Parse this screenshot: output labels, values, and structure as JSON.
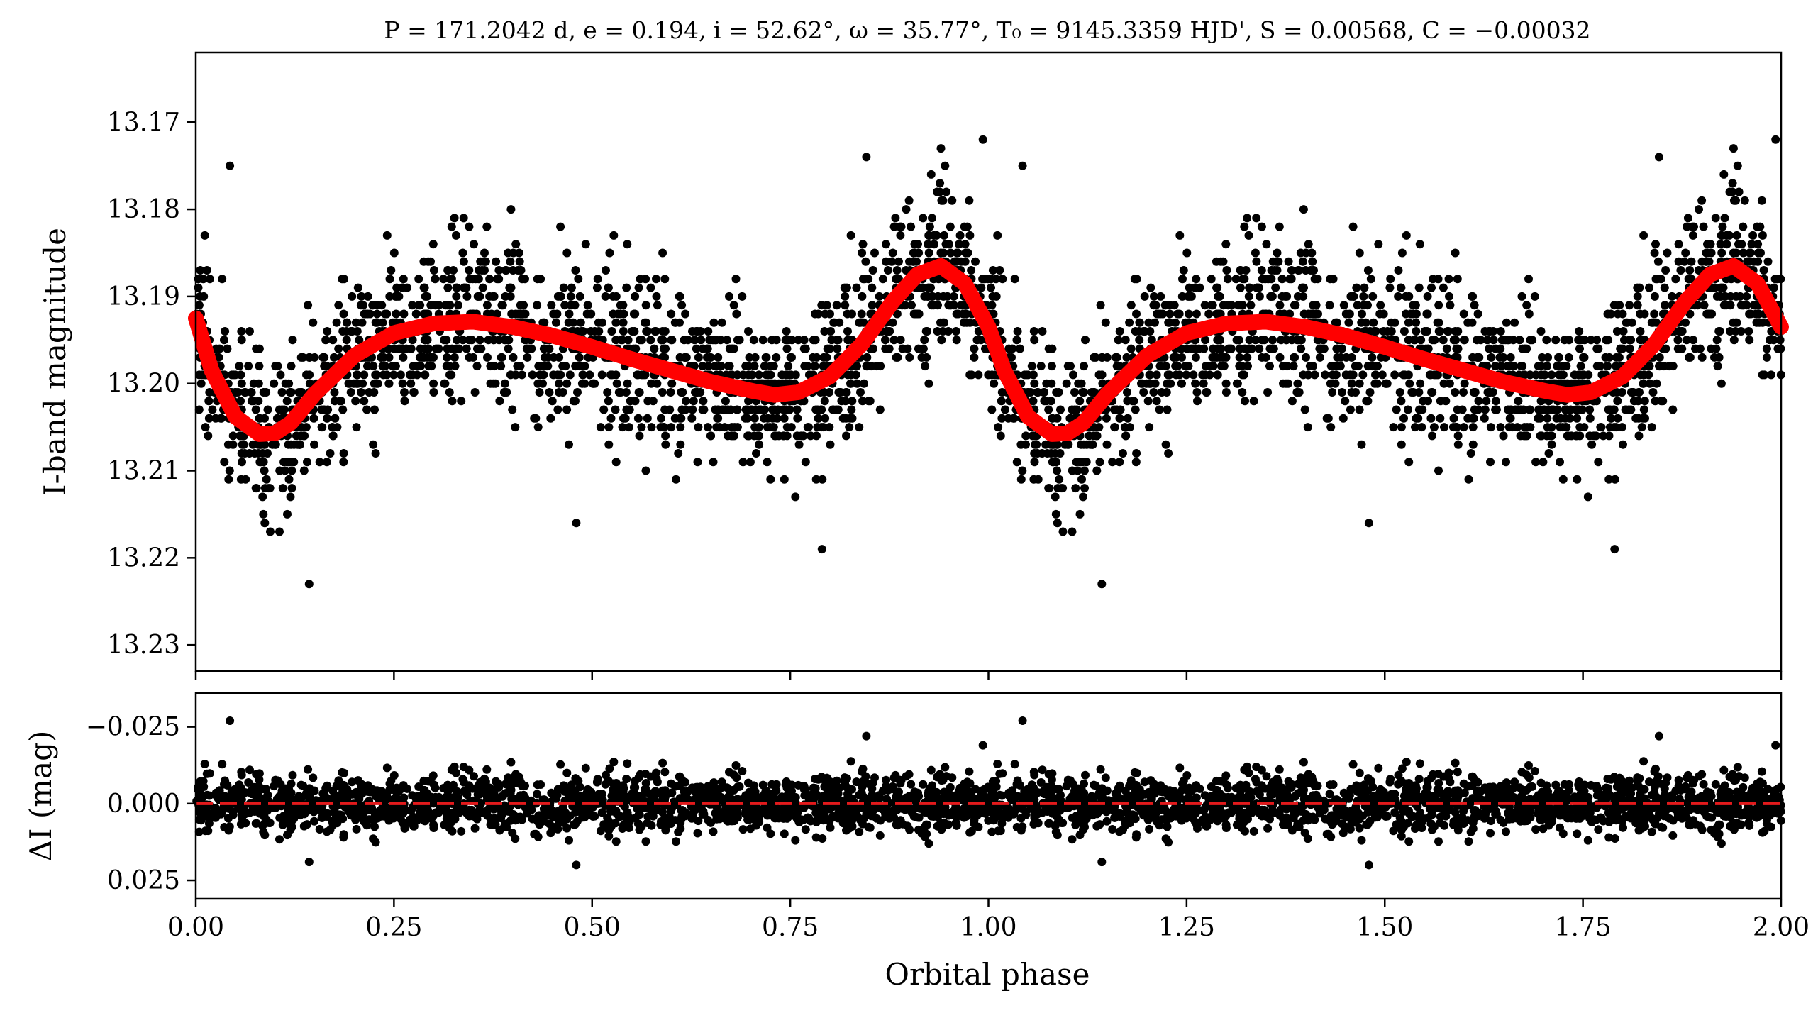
{
  "chart_data": [
    {
      "type": "scatter",
      "panel": "top",
      "title": "P = 171.2042 d, e = 0.194, i = 52.62°, ω = 35.77°, T₀ = 9145.3359 HJD', S = 0.00568, C = −0.00032",
      "ylabel": "I-band magnitude",
      "xlabel": "",
      "xlim": [
        0.0,
        2.0
      ],
      "ylim": [
        13.233,
        13.162
      ],
      "y_inverted": true,
      "y_ticks": [
        13.17,
        13.18,
        13.19,
        13.2,
        13.21,
        13.22,
        13.23
      ],
      "y_tick_labels": [
        "13.17",
        "13.18",
        "13.19",
        "13.20",
        "13.21",
        "13.22",
        "13.23"
      ],
      "grid": false,
      "colors": {
        "points": "#000000",
        "model": "#ff0000"
      },
      "series": [
        {
          "kind": "model-curve",
          "x": [
            0.0,
            0.02,
            0.05,
            0.08,
            0.1,
            0.12,
            0.15,
            0.2,
            0.25,
            0.3,
            0.35,
            0.4,
            0.45,
            0.5,
            0.55,
            0.6,
            0.65,
            0.7,
            0.73,
            0.76,
            0.8,
            0.84,
            0.88,
            0.91,
            0.94,
            0.97,
            1.0,
            1.02,
            1.05,
            1.08,
            1.1,
            1.12,
            1.15,
            1.2,
            1.25,
            1.3,
            1.35,
            1.4,
            1.45,
            1.5,
            1.55,
            1.6,
            1.65,
            1.7,
            1.73,
            1.76,
            1.8,
            1.84,
            1.88,
            1.91,
            1.94,
            1.97,
            2.0
          ],
          "y": [
            13.1925,
            13.1985,
            13.2038,
            13.2058,
            13.2057,
            13.2045,
            13.2012,
            13.1968,
            13.1942,
            13.1931,
            13.1929,
            13.1935,
            13.1945,
            13.1958,
            13.1972,
            13.1985,
            13.1998,
            13.2008,
            13.2013,
            13.201,
            13.1992,
            13.1955,
            13.1905,
            13.1875,
            13.1865,
            13.1885,
            13.1935,
            13.1985,
            13.2038,
            13.2058,
            13.2057,
            13.2045,
            13.2012,
            13.1968,
            13.1942,
            13.1931,
            13.1929,
            13.1935,
            13.1945,
            13.1958,
            13.1972,
            13.1985,
            13.1998,
            13.2008,
            13.2013,
            13.201,
            13.1992,
            13.1955,
            13.1905,
            13.1875,
            13.1865,
            13.1885,
            13.1935
          ]
        },
        {
          "kind": "observed-points",
          "n_per_phase_cycle": 1700,
          "scatter_sigma_mag": 0.0045,
          "outliers": [
            {
              "x": 0.043,
              "y": 13.175
            },
            {
              "x": 0.143,
              "y": 13.223
            },
            {
              "x": 0.094,
              "y": 13.217
            },
            {
              "x": 0.846,
              "y": 13.174
            },
            {
              "x": 0.94,
              "y": 13.173
            },
            {
              "x": 0.993,
              "y": 13.172
            },
            {
              "x": 0.79,
              "y": 13.219
            },
            {
              "x": 0.48,
              "y": 13.216
            },
            {
              "x": 1.043,
              "y": 13.175
            },
            {
              "x": 1.143,
              "y": 13.223
            },
            {
              "x": 1.094,
              "y": 13.217
            },
            {
              "x": 1.846,
              "y": 13.174
            },
            {
              "x": 1.94,
              "y": 13.173
            },
            {
              "x": 1.993,
              "y": 13.172
            },
            {
              "x": 1.79,
              "y": 13.219
            },
            {
              "x": 1.48,
              "y": 13.216
            }
          ]
        }
      ]
    },
    {
      "type": "scatter",
      "panel": "bottom",
      "title": "",
      "ylabel": "ΔI (mag)",
      "xlabel": "Orbital phase",
      "xlim": [
        0.0,
        2.0
      ],
      "ylim": [
        0.031,
        -0.036
      ],
      "y_inverted": true,
      "y_ticks": [
        -0.025,
        0.0,
        0.025
      ],
      "y_tick_labels": [
        "−0.025",
        "0.000",
        "0.025"
      ],
      "x_ticks": [
        0.0,
        0.25,
        0.5,
        0.75,
        1.0,
        1.25,
        1.5,
        1.75,
        2.0
      ],
      "x_tick_labels": [
        "0.00",
        "0.25",
        "0.50",
        "0.75",
        "1.00",
        "1.25",
        "1.50",
        "1.75",
        "2.00"
      ],
      "grid": false,
      "colors": {
        "points": "#000000",
        "zero_line": "#e31a1c"
      },
      "series": [
        {
          "kind": "zero-line",
          "y": 0.0,
          "style": "dashed"
        },
        {
          "kind": "residual-points",
          "n_per_phase_cycle": 1700,
          "scatter_sigma_mag": 0.0045,
          "outliers": [
            {
              "x": 0.043,
              "y": -0.027
            },
            {
              "x": 0.846,
              "y": -0.022
            },
            {
              "x": 1.043,
              "y": -0.027
            },
            {
              "x": 1.846,
              "y": -0.022
            },
            {
              "x": 0.993,
              "y": -0.019
            },
            {
              "x": 1.993,
              "y": -0.019
            },
            {
              "x": 0.143,
              "y": 0.019
            },
            {
              "x": 1.143,
              "y": 0.019
            },
            {
              "x": 0.48,
              "y": 0.02
            },
            {
              "x": 1.48,
              "y": 0.02
            }
          ]
        }
      ]
    }
  ]
}
